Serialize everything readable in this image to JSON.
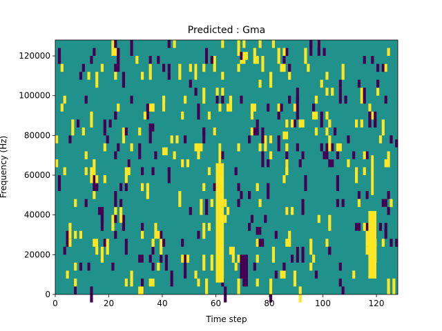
{
  "chart_data": {
    "type": "heatmap",
    "title": "Predicted : Gma",
    "xlabel": "Time step",
    "ylabel": "Frequency (Hz)",
    "xlim": [
      0,
      128
    ],
    "ylim": [
      0,
      128000
    ],
    "x_ticks": [
      0,
      20,
      40,
      60,
      80,
      100,
      120
    ],
    "x_tick_labels": [
      "0",
      "20",
      "40",
      "60",
      "80",
      "100",
      "120"
    ],
    "y_ticks": [
      0,
      20000,
      40000,
      60000,
      80000,
      100000,
      120000
    ],
    "y_tick_labels": [
      "0",
      "20000",
      "40000",
      "60000",
      "80000",
      "100000",
      "120000"
    ],
    "colormap": "viridis",
    "value_levels": {
      "low": -1,
      "mid": 0,
      "high": 1
    },
    "level_colors": {
      "low": "#440154",
      "mid": "#21918c",
      "high": "#fde725"
    },
    "background_value": 0,
    "high_blocks": [
      {
        "x": [
          60,
          63
        ],
        "y": [
          6000,
          66000
        ]
      },
      {
        "x": [
          61,
          62
        ],
        "y": [
          66000,
          76000
        ]
      },
      {
        "x": [
          117,
          120
        ],
        "y": [
          8000,
          42000
        ]
      },
      {
        "x": [
          118,
          119
        ],
        "y": [
          50000,
          70000
        ]
      },
      {
        "x": [
          52,
          53
        ],
        "y": [
          108000,
          116000
        ]
      },
      {
        "x": [
          70,
          72
        ],
        "y": [
          118000,
          122000
        ]
      },
      {
        "x": [
          40,
          42
        ],
        "y": [
          70000,
          74000
        ]
      },
      {
        "x": [
          85,
          87
        ],
        "y": [
          78000,
          82000
        ]
      },
      {
        "x": [
          14,
          16
        ],
        "y": [
          24000,
          28000
        ]
      },
      {
        "x": [
          31,
          33
        ],
        "y": [
          0,
          4000
        ]
      }
    ],
    "low_blocks": [
      {
        "x": [
          69,
          72
        ],
        "y": [
          8000,
          20000
        ]
      },
      {
        "x": [
          70,
          72
        ],
        "y": [
          4000,
          8000
        ]
      },
      {
        "x": [
          76,
          78
        ],
        "y": [
          24000,
          28000
        ]
      },
      {
        "x": [
          75,
          77
        ],
        "y": [
          30000,
          34000
        ]
      },
      {
        "x": [
          69,
          70
        ],
        "y": [
          118000,
          122000
        ]
      },
      {
        "x": [
          35,
          37
        ],
        "y": [
          82000,
          86000
        ]
      },
      {
        "x": [
          127,
          128
        ],
        "y": [
          74000,
          78000
        ]
      },
      {
        "x": [
          31,
          33
        ],
        "y": [
          16000,
          20000
        ]
      },
      {
        "x": [
          7,
          8
        ],
        "y": [
          0,
          4000
        ]
      }
    ],
    "scattered_cells": "Remaining yellow (high) and dark-purple (low) single cells are scattered noise across the grid."
  }
}
